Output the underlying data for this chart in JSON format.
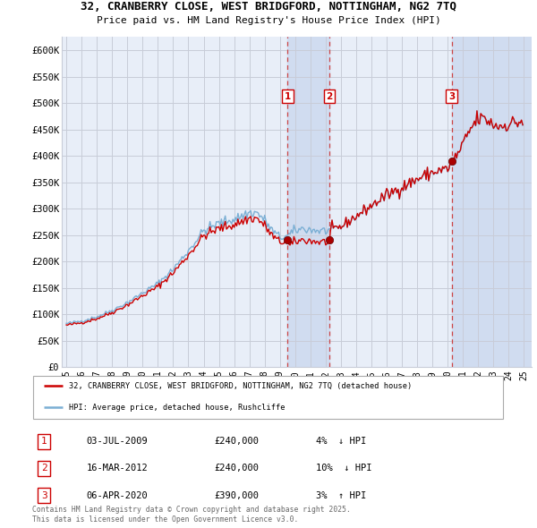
{
  "title_line1": "32, CRANBERRY CLOSE, WEST BRIDGFORD, NOTTINGHAM, NG2 7TQ",
  "title_line2": "Price paid vs. HM Land Registry's House Price Index (HPI)",
  "ylabel_ticks": [
    "£0",
    "£50K",
    "£100K",
    "£150K",
    "£200K",
    "£250K",
    "£300K",
    "£350K",
    "£400K",
    "£450K",
    "£500K",
    "£550K",
    "£600K"
  ],
  "ytick_values": [
    0,
    50000,
    100000,
    150000,
    200000,
    250000,
    300000,
    350000,
    400000,
    450000,
    500000,
    550000,
    600000
  ],
  "ylim": [
    0,
    625000
  ],
  "xlim_start": 1994.7,
  "xlim_end": 2025.5,
  "xtick_years": [
    1995,
    1996,
    1997,
    1998,
    1999,
    2000,
    2001,
    2002,
    2003,
    2004,
    2005,
    2006,
    2007,
    2008,
    2009,
    2010,
    2011,
    2012,
    2013,
    2014,
    2015,
    2016,
    2017,
    2018,
    2019,
    2020,
    2021,
    2022,
    2023,
    2024,
    2025
  ],
  "xtick_labels": [
    "95",
    "96",
    "97",
    "98",
    "99",
    "00",
    "01",
    "02",
    "03",
    "04",
    "05",
    "06",
    "07",
    "08",
    "09",
    "10",
    "11",
    "12",
    "13",
    "14",
    "15",
    "16",
    "17",
    "18",
    "19",
    "20",
    "21",
    "22",
    "23",
    "24",
    "25"
  ],
  "color_price": "#cc0000",
  "color_hpi": "#7bafd4",
  "color_vline": "#cc4444",
  "bg_color": "#e8eef8",
  "shade_color": "#d0dcf0",
  "grid_color": "#c8ccd8",
  "white_bg": "#ffffff",
  "transactions": [
    {
      "num": 1,
      "date": "03-JUL-2009",
      "price": 240000,
      "pct": "4%",
      "dir": "↓",
      "year": 2009.5
    },
    {
      "num": 2,
      "date": "16-MAR-2012",
      "price": 240000,
      "pct": "10%",
      "dir": "↓",
      "year": 2012.25
    },
    {
      "num": 3,
      "date": "06-APR-2020",
      "price": 390000,
      "pct": "3%",
      "dir": "↑",
      "year": 2020.25
    }
  ],
  "legend_price_label": "32, CRANBERRY CLOSE, WEST BRIDGFORD, NOTTINGHAM, NG2 7TQ (detached house)",
  "legend_hpi_label": "HPI: Average price, detached house, Rushcliffe",
  "footer_line1": "Contains HM Land Registry data © Crown copyright and database right 2025.",
  "footer_line2": "This data is licensed under the Open Government Licence v3.0."
}
